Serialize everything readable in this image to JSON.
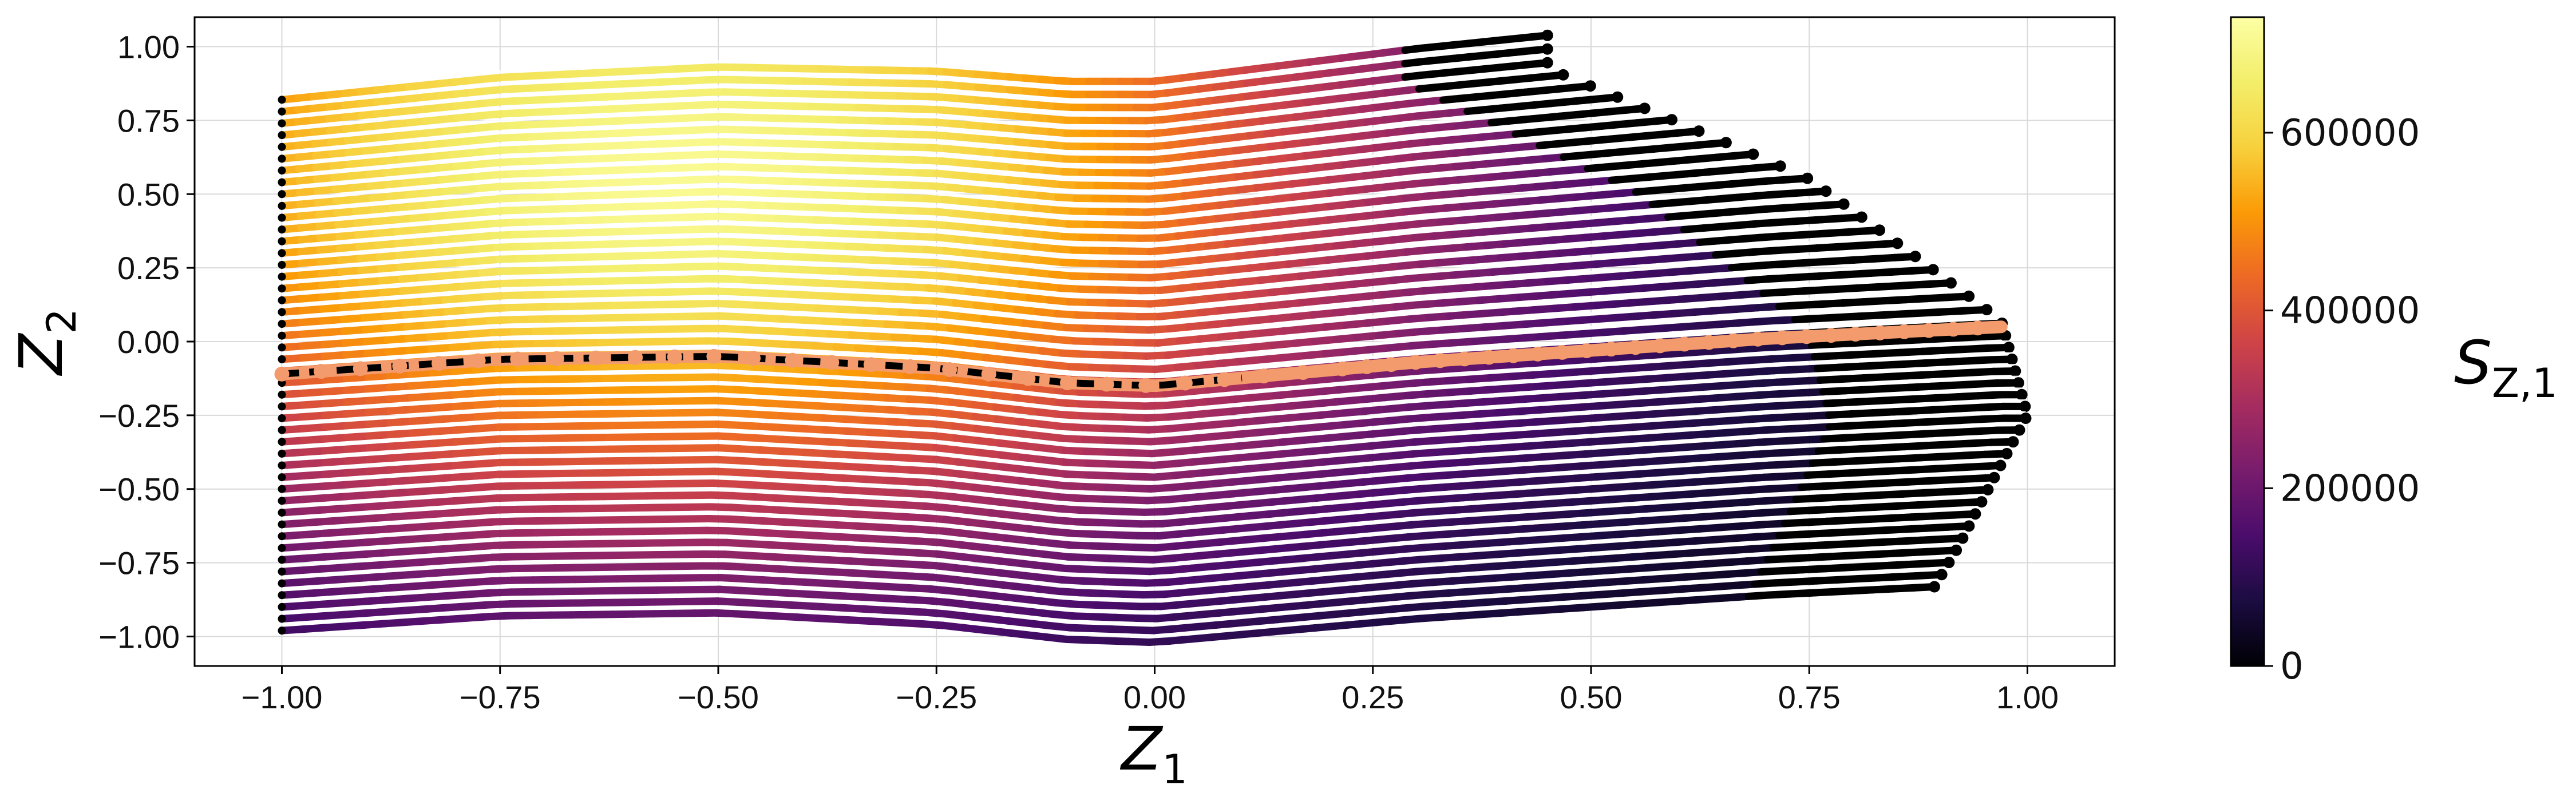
{
  "chart_data": {
    "type": "scatter",
    "description_of_series": "trajectories",
    "title": "",
    "xlabel": "Z_1",
    "ylabel": "Z_2",
    "xlim": [
      -1.1,
      1.1
    ],
    "ylim": [
      -1.1,
      1.1
    ],
    "x_ticks": [
      "-1.00",
      "-0.75",
      "-0.50",
      "-0.25",
      "0.00",
      "0.25",
      "0.50",
      "0.75",
      "1.00"
    ],
    "y_ticks": [
      "1.00",
      "0.75",
      "0.50",
      "0.25",
      "0.00",
      "-0.25",
      "-0.50",
      "-0.75",
      "-1.00"
    ],
    "grid": true,
    "colormap": "inferno",
    "colorbar": {
      "label": "S_{Z,1}",
      "min": 0,
      "max": 730000,
      "ticks": [
        "0",
        "200000",
        "400000",
        "600000"
      ]
    },
    "trajectories": {
      "count": 46,
      "start_x": -1.0,
      "start_y_range": [
        -0.98,
        0.82
      ],
      "end_points_outline": [
        [
          0.45,
          1.0
        ],
        [
          0.75,
          0.56
        ],
        [
          0.97,
          0.07
        ],
        [
          1.0,
          -0.22
        ],
        [
          0.92,
          -0.62
        ],
        [
          0.86,
          -0.88
        ]
      ]
    },
    "highlighted_series": {
      "name": "",
      "color": "#f39b6d",
      "points": [
        [
          -1.0,
          -0.11
        ],
        [
          -0.75,
          -0.06
        ],
        [
          -0.5,
          -0.05
        ],
        [
          -0.25,
          -0.09
        ],
        [
          -0.1,
          -0.14
        ],
        [
          0.0,
          -0.15
        ],
        [
          0.15,
          -0.11
        ],
        [
          0.3,
          -0.07
        ],
        [
          0.5,
          -0.03
        ],
        [
          0.7,
          0.01
        ],
        [
          0.97,
          0.05
        ]
      ]
    },
    "reference_line": {
      "style": "dashed",
      "color": "#000000",
      "x_range": [
        -1.0,
        0.1
      ]
    }
  }
}
